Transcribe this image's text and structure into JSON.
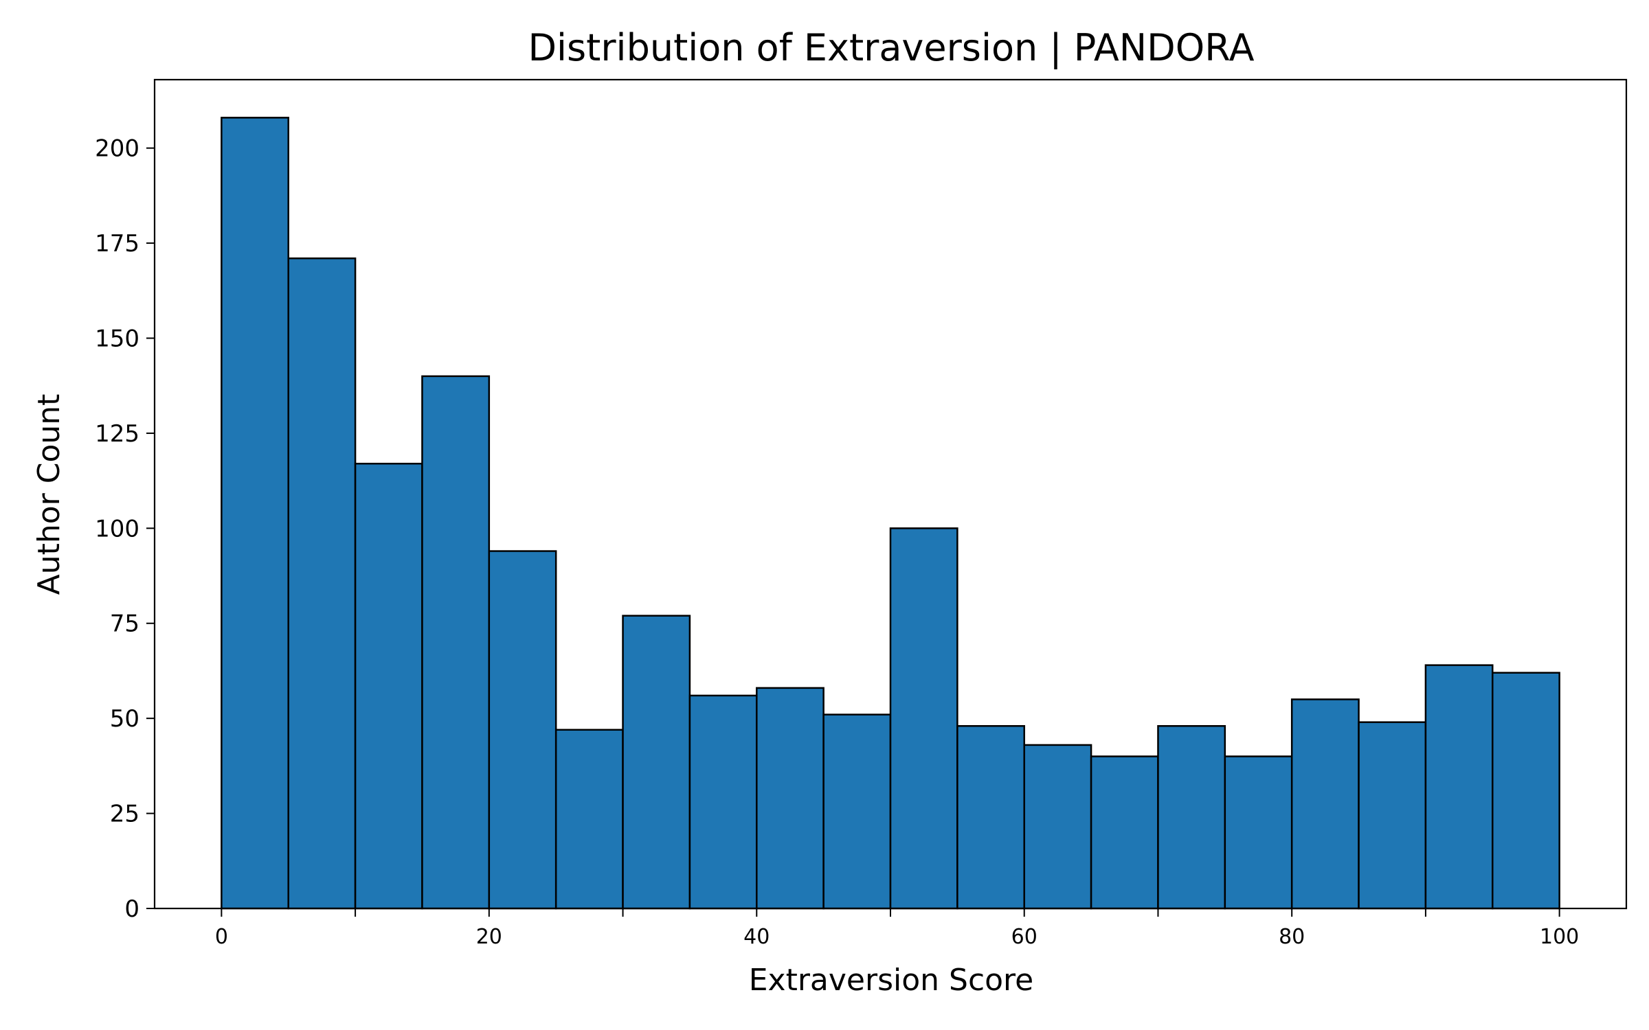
{
  "chart_data": {
    "type": "bar",
    "title": "Distribution of Extraversion | PANDORA",
    "xlabel": "Extraversion Score",
    "ylabel": "Author Count",
    "xlim": [
      -5,
      105
    ],
    "ylim": [
      0,
      218
    ],
    "bin_edges": [
      0,
      5,
      10,
      15,
      20,
      25,
      30,
      35,
      40,
      45,
      50,
      55,
      60,
      65,
      70,
      75,
      80,
      85,
      90,
      95,
      100
    ],
    "values": [
      208,
      171,
      117,
      140,
      94,
      47,
      77,
      56,
      58,
      51,
      100,
      48,
      43,
      40,
      48,
      40,
      55,
      49,
      64,
      62
    ],
    "x_major_ticks": [
      0,
      20,
      40,
      60,
      80,
      100
    ],
    "x_minor_ticks": [
      10,
      30,
      50,
      70,
      90
    ],
    "y_ticks": [
      0,
      25,
      50,
      75,
      100,
      125,
      150,
      175,
      200
    ],
    "bar_color": "#1f77b4",
    "edge_color": "#000000",
    "grid": false,
    "legend": "none"
  }
}
